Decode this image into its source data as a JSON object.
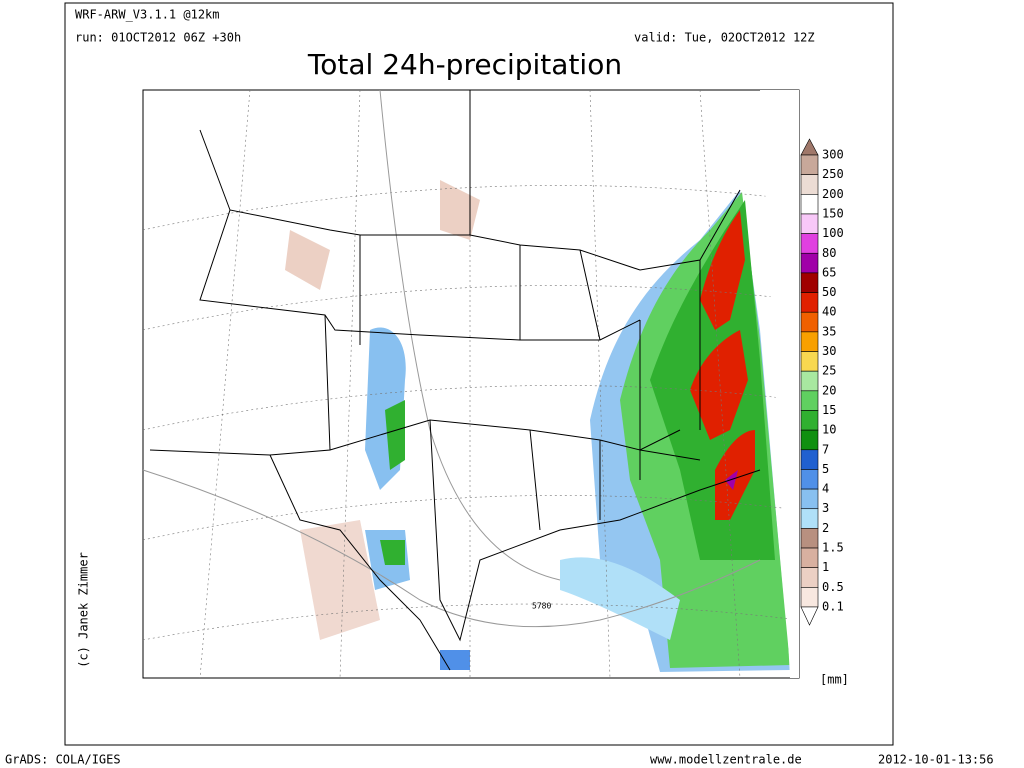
{
  "header": {
    "model": "WRF-ARW_V3.1.1 @12km",
    "run": "run: 01OCT2012 06Z +30h",
    "valid": "valid: Tue, 02OCT2012 12Z",
    "title": "Total 24h-precipitation"
  },
  "map": {
    "contour_label": "5780",
    "credit": "(c) Janek Zimmer"
  },
  "legend": {
    "levels": [
      300,
      250,
      200,
      150,
      100,
      80,
      65,
      50,
      40,
      35,
      30,
      25,
      20,
      15,
      10,
      7,
      5,
      4,
      3,
      2,
      1.5,
      1,
      0.5,
      0.1
    ],
    "colors": [
      "#a0786a",
      "#c8a89a",
      "#ecdcd4",
      "#ffffff",
      "#f8c8f8",
      "#e040e0",
      "#a000a8",
      "#a00000",
      "#e02000",
      "#f06000",
      "#f8a000",
      "#f8d850",
      "#a8e8a0",
      "#60d060",
      "#30b030",
      "#109010",
      "#2060d0",
      "#5090e8",
      "#88c0f0",
      "#b0e0f8",
      "#b89080",
      "#d8b0a0",
      "#ecd0c4",
      "#f8e8e0",
      "#ffffff"
    ],
    "unit": "[mm]"
  },
  "footer": {
    "software": "GrADS: COLA/IGES",
    "website": "www.modellzentrale.de",
    "timestamp": "2012-10-01-13:56"
  }
}
